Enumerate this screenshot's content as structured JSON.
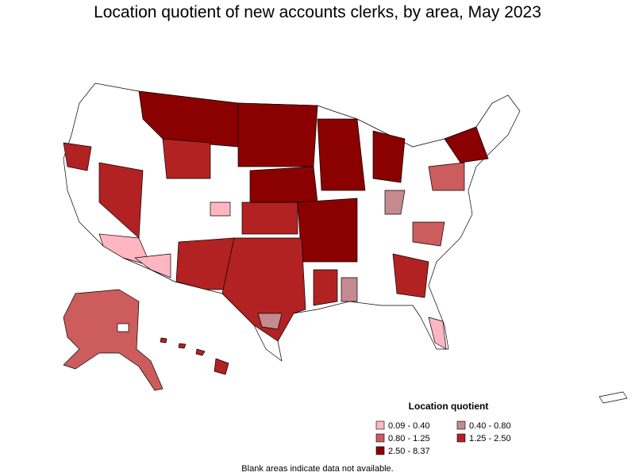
{
  "title": "Location quotient of new accounts clerks, by area, May 2023",
  "legend": {
    "title": "Location quotient",
    "items": [
      {
        "label": "0.09 - 0.40",
        "color": "#ffb6c1"
      },
      {
        "label": "0.40 - 0.80",
        "color": "#c48a8f"
      },
      {
        "label": "0.80 - 1.25",
        "color": "#cd5c5c"
      },
      {
        "label": "1.25 - 2.50",
        "color": "#b22222"
      },
      {
        "label": "2.50 - 8.37",
        "color": "#8b0000"
      }
    ]
  },
  "note": "Blank areas indicate data not available."
}
